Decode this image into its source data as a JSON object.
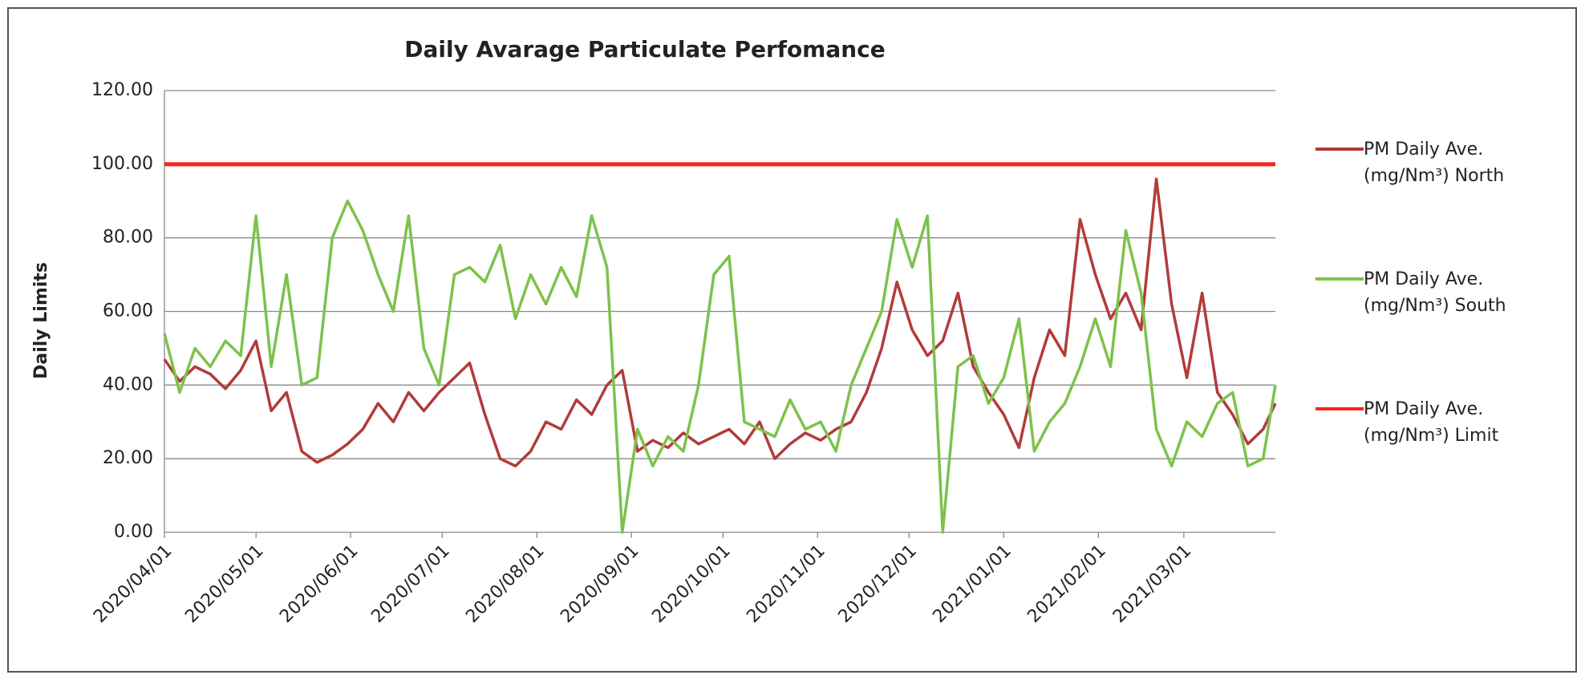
{
  "chart_data": {
    "type": "line",
    "title": "Daily Avarage Particulate Perfomance",
    "y_label": "Daily Limits",
    "x": [
      "2020/04/01",
      "2020/04/06",
      "2020/04/11",
      "2020/04/16",
      "2020/04/21",
      "2020/04/26",
      "2020/05/01",
      "2020/05/06",
      "2020/05/11",
      "2020/05/16",
      "2020/05/21",
      "2020/05/26",
      "2020/05/31",
      "2020/06/05",
      "2020/06/10",
      "2020/06/15",
      "2020/06/20",
      "2020/06/25",
      "2020/06/30",
      "2020/07/05",
      "2020/07/10",
      "2020/07/15",
      "2020/07/20",
      "2020/07/25",
      "2020/07/30",
      "2020/08/04",
      "2020/08/09",
      "2020/08/14",
      "2020/08/19",
      "2020/08/24",
      "2020/08/29",
      "2020/09/03",
      "2020/09/08",
      "2020/09/13",
      "2020/09/18",
      "2020/09/23",
      "2020/09/28",
      "2020/10/03",
      "2020/10/08",
      "2020/10/13",
      "2020/10/18",
      "2020/10/23",
      "2020/10/28",
      "2020/11/02",
      "2020/11/07",
      "2020/11/12",
      "2020/11/17",
      "2020/11/22",
      "2020/11/27",
      "2020/12/02",
      "2020/12/07",
      "2020/12/12",
      "2020/12/17",
      "2020/12/22",
      "2020/12/27",
      "2021/01/01",
      "2021/01/06",
      "2021/01/11",
      "2021/01/16",
      "2021/01/21",
      "2021/01/26",
      "2021/01/31",
      "2021/02/05",
      "2021/02/10",
      "2021/02/15",
      "2021/02/20",
      "2021/02/25",
      "2021/03/02",
      "2021/03/07",
      "2021/03/12",
      "2021/03/17",
      "2021/03/22",
      "2021/03/27",
      "2021/03/31"
    ],
    "series": [
      {
        "name": "PM Daily Ave. (mg/Nm³) North",
        "color": "#b23b3b",
        "values": [
          47,
          41,
          45,
          43,
          39,
          44,
          52,
          33,
          38,
          22,
          19,
          21,
          24,
          28,
          35,
          30,
          38,
          33,
          38,
          42,
          46,
          32,
          20,
          18,
          22,
          30,
          28,
          36,
          32,
          40,
          44,
          22,
          25,
          23,
          27,
          24,
          26,
          28,
          24,
          30,
          20,
          24,
          27,
          25,
          28,
          30,
          38,
          50,
          68,
          55,
          48,
          52,
          65,
          45,
          38,
          32,
          23,
          42,
          55,
          48,
          85,
          70,
          58,
          65,
          55,
          96,
          62,
          42,
          65,
          38,
          32,
          24,
          28,
          35
        ]
      },
      {
        "name": "PM Daily Ave. (mg/Nm³) South",
        "color": "#7dc24b",
        "values": [
          54,
          38,
          50,
          45,
          52,
          48,
          86,
          45,
          70,
          40,
          42,
          80,
          90,
          82,
          70,
          60,
          86,
          50,
          40,
          70,
          72,
          68,
          78,
          58,
          70,
          62,
          72,
          64,
          86,
          72,
          0,
          28,
          18,
          26,
          22,
          40,
          70,
          75,
          30,
          28,
          26,
          36,
          28,
          30,
          22,
          40,
          50,
          60,
          85,
          72,
          86,
          0,
          45,
          48,
          35,
          42,
          58,
          22,
          30,
          35,
          45,
          58,
          45,
          82,
          65,
          28,
          18,
          30,
          26,
          35,
          38,
          18,
          20,
          40
        ]
      },
      {
        "name": "PM Daily Ave. (mg/Nm³) Limit",
        "color": "#ff2020",
        "values": [
          100,
          100,
          100,
          100,
          100,
          100,
          100,
          100,
          100,
          100,
          100,
          100,
          100,
          100,
          100,
          100,
          100,
          100,
          100,
          100,
          100,
          100,
          100,
          100,
          100,
          100,
          100,
          100,
          100,
          100,
          100,
          100,
          100,
          100,
          100,
          100,
          100,
          100,
          100,
          100,
          100,
          100,
          100,
          100,
          100,
          100,
          100,
          100,
          100,
          100,
          100,
          100,
          100,
          100,
          100,
          100,
          100,
          100,
          100,
          100,
          100,
          100,
          100,
          100,
          100,
          100,
          100,
          100,
          100,
          100,
          100,
          100,
          100,
          100
        ]
      }
    ],
    "xlim": [
      "2020/04/01",
      "2021/03/31"
    ],
    "xticks": [
      "2020/04/01",
      "2020/05/01",
      "2020/06/01",
      "2020/07/01",
      "2020/08/01",
      "2020/09/01",
      "2020/10/01",
      "2020/11/01",
      "2020/12/01",
      "2021/01/01",
      "2021/02/01",
      "2021/03/01"
    ],
    "ylim": [
      0,
      120
    ],
    "yticks": [
      {
        "value": 0,
        "label": "0.00"
      },
      {
        "value": 20,
        "label": "20.00"
      },
      {
        "value": 40,
        "label": "40.00"
      },
      {
        "value": 60,
        "label": "60.00"
      },
      {
        "value": 80,
        "label": "80.00"
      },
      {
        "value": 100,
        "label": "100.00"
      },
      {
        "value": 120,
        "label": "120.00"
      }
    ],
    "grid": true,
    "legend": "right"
  }
}
